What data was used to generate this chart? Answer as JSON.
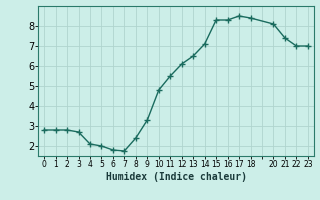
{
  "x": [
    0,
    1,
    2,
    3,
    4,
    5,
    6,
    7,
    8,
    9,
    10,
    11,
    12,
    13,
    14,
    15,
    16,
    17,
    18,
    20,
    21,
    22,
    23
  ],
  "y": [
    2.8,
    2.8,
    2.8,
    2.7,
    2.1,
    2.0,
    1.8,
    1.75,
    2.4,
    3.3,
    4.8,
    5.5,
    6.1,
    6.5,
    7.1,
    8.3,
    8.3,
    8.5,
    8.4,
    8.1,
    7.4,
    7.0,
    7.0
  ],
  "bg_color": "#cceee8",
  "line_color": "#1a6b5e",
  "marker_color": "#1a6b5e",
  "grid_color": "#b0d4ce",
  "xlabel": "Humidex (Indice chaleur)",
  "xlim": [
    -0.5,
    23.5
  ],
  "ylim": [
    1.5,
    9.0
  ],
  "yticks": [
    2,
    3,
    4,
    5,
    6,
    7,
    8
  ],
  "xtick_labels": [
    "0",
    "1",
    "2",
    "3",
    "4",
    "5",
    "6",
    "7",
    "8",
    "9",
    "10",
    "11",
    "12",
    "13",
    "14",
    "15",
    "16",
    "17",
    "18",
    "",
    "20",
    "21",
    "22",
    "23"
  ],
  "axis_bg": "#cceee8",
  "fig_bg": "#cceee8",
  "xlabel_fontsize": 7,
  "ytick_fontsize": 7,
  "xtick_fontsize": 5.5
}
